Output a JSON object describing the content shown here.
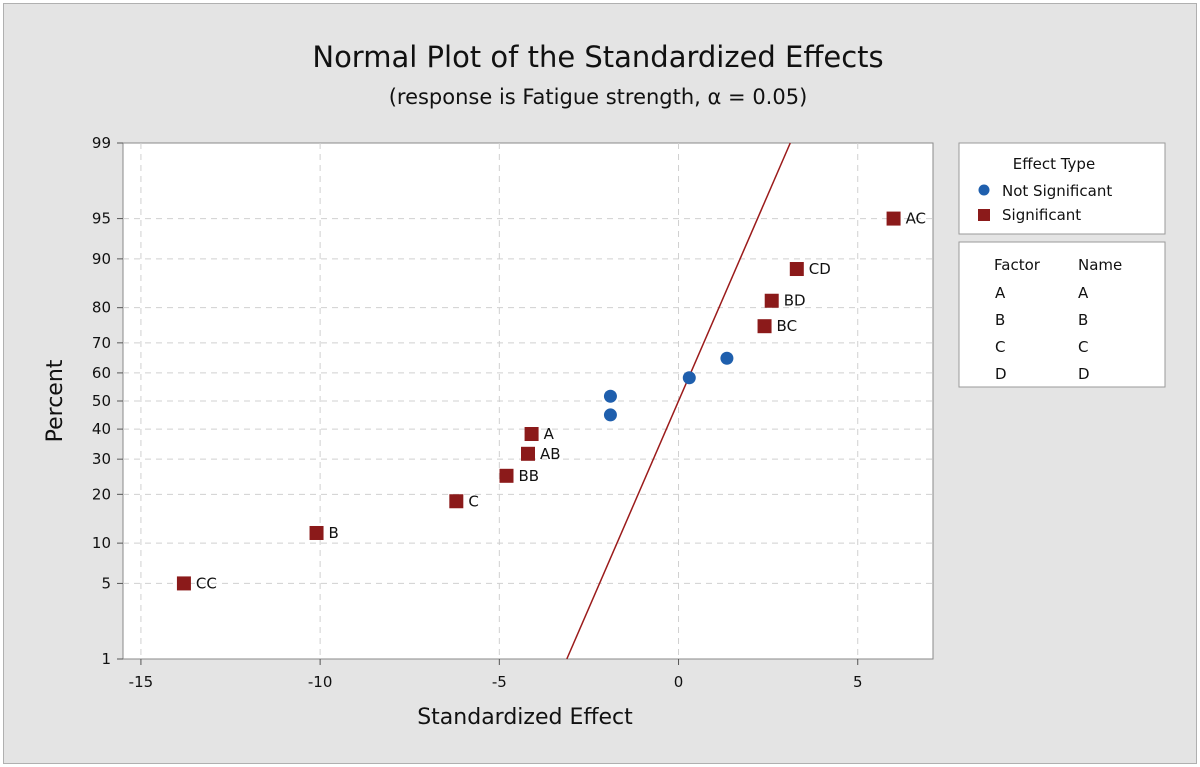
{
  "chart_data": {
    "type": "scatter",
    "title": "Normal Plot of the Standardized Effects",
    "subtitle": "(response is Fatigue strength, α = 0.05)",
    "xlabel": "Standardized Effect",
    "ylabel": "Percent",
    "xlim": [
      -15.5,
      7.1
    ],
    "ylim": [
      1,
      99
    ],
    "x_ticks": [
      -15,
      -10,
      -5,
      0,
      5
    ],
    "x_tick_labels": [
      "-15",
      "-10",
      "-5",
      "0",
      "5"
    ],
    "y_ticks": [
      1,
      5,
      10,
      20,
      30,
      40,
      50,
      60,
      70,
      80,
      90,
      95,
      99
    ],
    "y_tick_labels": [
      "1",
      "5",
      "10",
      "20",
      "30",
      "40",
      "50",
      "60",
      "70",
      "80",
      "90",
      "95",
      "99"
    ],
    "y_scale": "normal-probability",
    "grid": true,
    "reference_line": {
      "color": "#9b1b1b",
      "mean": 0,
      "sd": 1.34
    },
    "series": [
      {
        "name": "Significant",
        "marker": "square",
        "color": "#8b1a1a",
        "points": [
          {
            "label": "CC",
            "x": -13.8,
            "y": 5.0
          },
          {
            "label": "B",
            "x": -10.1,
            "y": 11.7
          },
          {
            "label": "C",
            "x": -6.2,
            "y": 18.3
          },
          {
            "label": "BB",
            "x": -4.8,
            "y": 25.0
          },
          {
            "label": "AB",
            "x": -4.2,
            "y": 31.7
          },
          {
            "label": "A",
            "x": -4.1,
            "y": 38.3
          },
          {
            "label": "BC",
            "x": 2.4,
            "y": 75.0
          },
          {
            "label": "BD",
            "x": 2.6,
            "y": 81.7
          },
          {
            "label": "CD",
            "x": 3.3,
            "y": 88.3
          },
          {
            "label": "AC",
            "x": 6.0,
            "y": 95.0
          }
        ]
      },
      {
        "name": "Not Significant",
        "marker": "circle",
        "color": "#1f5fad",
        "points": [
          {
            "label": "",
            "x": -1.9,
            "y": 45.0
          },
          {
            "label": "",
            "x": -1.9,
            "y": 51.7
          },
          {
            "label": "",
            "x": 0.3,
            "y": 58.3
          },
          {
            "label": "",
            "x": 1.35,
            "y": 65.0
          }
        ]
      }
    ],
    "legend": {
      "position": "right",
      "title": "Effect Type",
      "entries": [
        "Not Significant",
        "Significant"
      ]
    },
    "factor_table": {
      "headers": [
        "Factor",
        "Name"
      ],
      "rows": [
        [
          "A",
          "A"
        ],
        [
          "B",
          "B"
        ],
        [
          "C",
          "C"
        ],
        [
          "D",
          "D"
        ]
      ]
    }
  }
}
